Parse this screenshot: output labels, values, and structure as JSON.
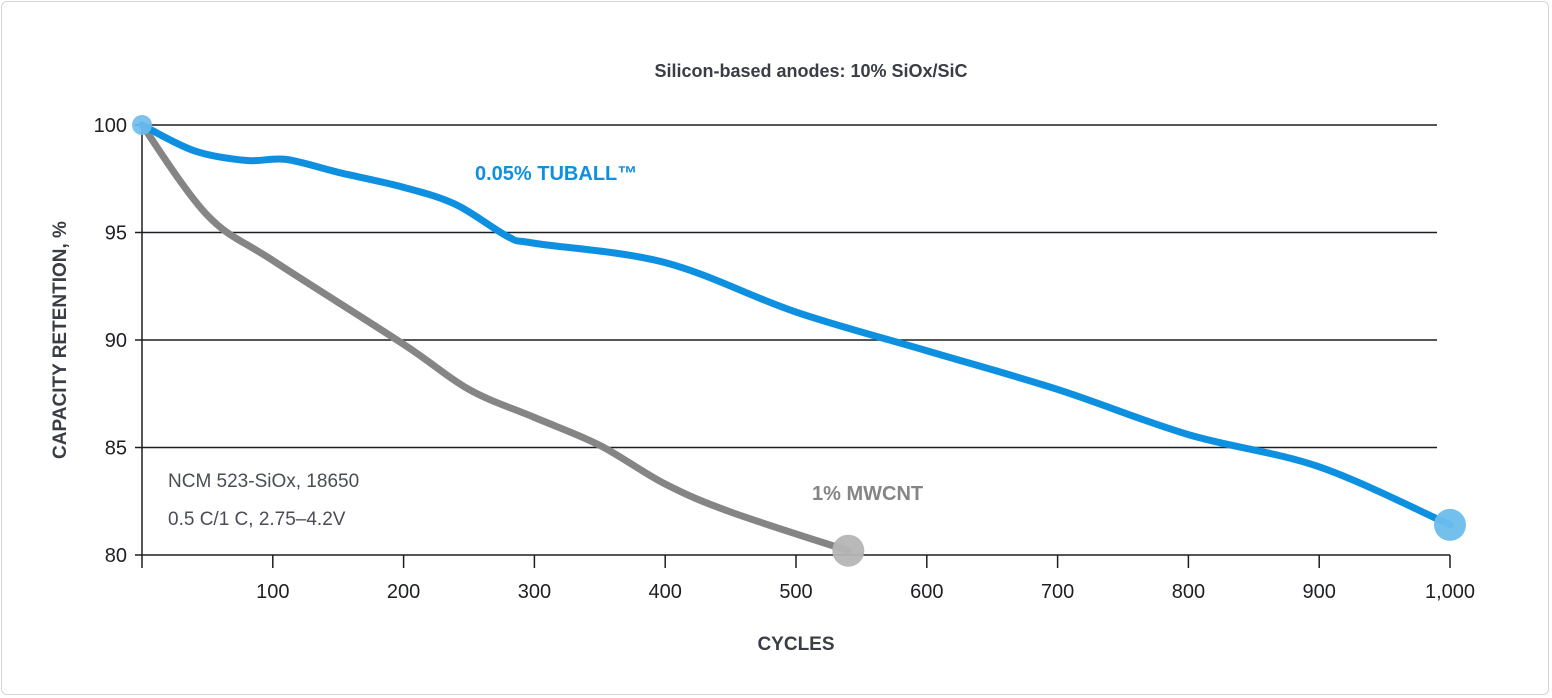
{
  "chart_data": {
    "type": "line",
    "title": "Silicon-based anodes: 10% SiOx/SiC",
    "xlabel": "CYCLES",
    "ylabel": "CAPACITY RETENTION, %",
    "xlim": [
      0,
      1000
    ],
    "ylim": [
      80,
      100
    ],
    "x_ticks": [
      100,
      200,
      300,
      400,
      500,
      600,
      700,
      800,
      900,
      1000
    ],
    "x_tick_labels": [
      "100",
      "200",
      "300",
      "400",
      "500",
      "600",
      "700",
      "800",
      "900",
      "1,000"
    ],
    "y_ticks": [
      80,
      85,
      90,
      95,
      100
    ],
    "y_tick_labels": [
      "80",
      "85",
      "90",
      "95",
      "100"
    ],
    "grid": "horizontal",
    "annotations": [
      "NCM 523-SiOx, 18650",
      "0.5 C/1 C, 2.75–4.2V"
    ],
    "series": [
      {
        "name": "0.05% TUBALL™",
        "color": "#0e90e0",
        "marker_color": "#6dbdec",
        "x": [
          0,
          40,
          80,
          110,
          150,
          200,
          240,
          280,
          300,
          400,
          500,
          600,
          700,
          800,
          900,
          1000
        ],
        "y": [
          100,
          98.8,
          98.35,
          98.4,
          97.8,
          97.1,
          96.3,
          94.8,
          94.5,
          93.6,
          91.3,
          89.5,
          87.7,
          85.6,
          84.1,
          81.4
        ]
      },
      {
        "name": "1% MWCNT",
        "color": "#858585",
        "marker_color": "#b5b5b5",
        "x": [
          0,
          50,
          100,
          200,
          250,
          300,
          350,
          400,
          450,
          540
        ],
        "y": [
          100,
          95.8,
          93.7,
          89.8,
          87.7,
          86.4,
          85.1,
          83.3,
          82.0,
          80.2
        ]
      }
    ]
  }
}
